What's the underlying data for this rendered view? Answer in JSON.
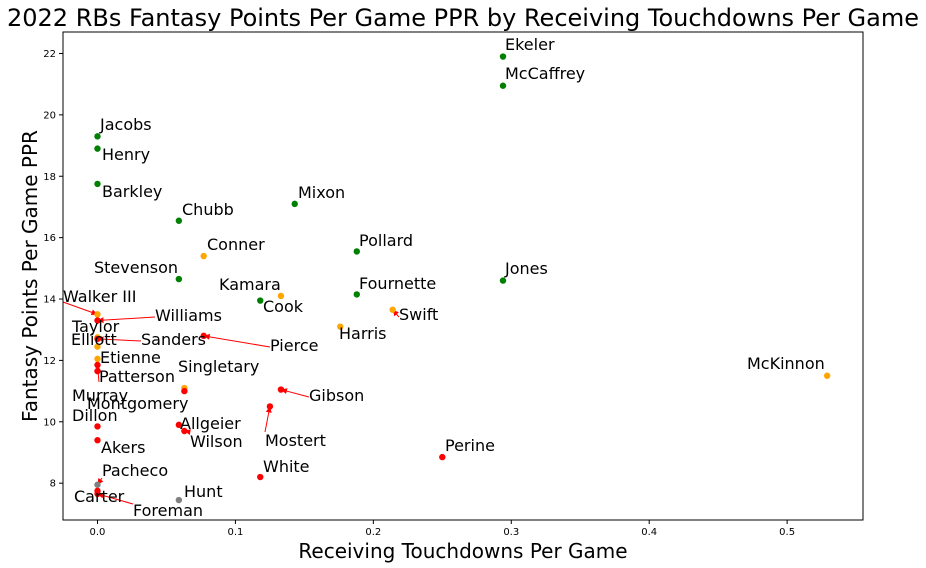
{
  "chart_data": {
    "type": "scatter",
    "title": "2022 RBs Fantasy Points Per Game PPR by Receiving Touchdowns Per Game",
    "xlabel": "Receiving Touchdowns Per Game",
    "ylabel": "Fantasy Points Per Game PPR",
    "xlim": [
      -0.025,
      0.555
    ],
    "ylim": [
      6.8,
      22.7
    ],
    "xticks": [
      "0.0",
      "0.1",
      "0.2",
      "0.3",
      "0.4",
      "0.5"
    ],
    "yticks": [
      "8",
      "10",
      "12",
      "14",
      "16",
      "18",
      "20",
      "22"
    ],
    "grid": false,
    "colors": {
      "green": "#008000",
      "orange": "#ffa500",
      "red": "#ff0000",
      "gray": "#808080"
    },
    "points": [
      {
        "label": "Ekeler",
        "x": 0.294,
        "y": 21.9,
        "color": "green"
      },
      {
        "label": "McCaffrey",
        "x": 0.294,
        "y": 20.95,
        "color": "green"
      },
      {
        "label": "Jacobs",
        "x": 0.0,
        "y": 19.3,
        "color": "green"
      },
      {
        "label": "Henry",
        "x": 0.0,
        "y": 18.9,
        "color": "green"
      },
      {
        "label": "Barkley",
        "x": 0.0,
        "y": 17.75,
        "color": "green"
      },
      {
        "label": "Chubb",
        "x": 0.059,
        "y": 16.55,
        "color": "green"
      },
      {
        "label": "Mixon",
        "x": 0.143,
        "y": 17.1,
        "color": "green"
      },
      {
        "label": "Conner",
        "x": 0.077,
        "y": 15.4,
        "color": "orange"
      },
      {
        "label": "Pollard",
        "x": 0.188,
        "y": 15.55,
        "color": "green"
      },
      {
        "label": "Stevenson",
        "x": 0.059,
        "y": 14.65,
        "color": "green"
      },
      {
        "label": "Jones",
        "x": 0.294,
        "y": 14.6,
        "color": "green"
      },
      {
        "label": "Kamara",
        "x": 0.133,
        "y": 14.1,
        "color": "orange"
      },
      {
        "label": "Cook",
        "x": 0.118,
        "y": 13.95,
        "color": "green"
      },
      {
        "label": "Fournette",
        "x": 0.188,
        "y": 14.15,
        "color": "green"
      },
      {
        "label": "Swift",
        "x": 0.214,
        "y": 13.65,
        "color": "orange"
      },
      {
        "label": "Harris",
        "x": 0.176,
        "y": 13.1,
        "color": "orange"
      },
      {
        "label": "Walker III",
        "x": 0.0,
        "y": 13.5,
        "color": "orange"
      },
      {
        "label": "Williams",
        "x": 0.0,
        "y": 13.3,
        "color": "red"
      },
      {
        "label": "Taylor",
        "x": 0.0,
        "y": 12.75,
        "color": "orange"
      },
      {
        "label": "Sanders",
        "x": 0.0,
        "y": 12.7,
        "color": "red"
      },
      {
        "label": "Elliott",
        "x": 0.0,
        "y": 12.45,
        "color": "orange"
      },
      {
        "label": "Pierce",
        "x": 0.077,
        "y": 12.8,
        "color": "red"
      },
      {
        "label": "Etienne",
        "x": 0.0,
        "y": 12.05,
        "color": "orange"
      },
      {
        "label": "Patterson",
        "x": 0.0,
        "y": 11.85,
        "color": "red"
      },
      {
        "label": "Murray",
        "x": 0.0,
        "y": 11.65,
        "color": "red"
      },
      {
        "label": "Singletary",
        "x": 0.063,
        "y": 11.1,
        "color": "orange"
      },
      {
        "label": "Montgomery",
        "x": 0.063,
        "y": 11.0,
        "color": "red"
      },
      {
        "label": "McKinnon",
        "x": 0.529,
        "y": 11.5,
        "color": "orange"
      },
      {
        "label": "Gibson",
        "x": 0.133,
        "y": 11.05,
        "color": "red"
      },
      {
        "label": "Mostert",
        "x": 0.125,
        "y": 10.5,
        "color": "red"
      },
      {
        "label": "Dillon",
        "x": 0.0,
        "y": 9.85,
        "color": "red"
      },
      {
        "label": "Allgeier",
        "x": 0.059,
        "y": 9.9,
        "color": "red"
      },
      {
        "label": "Wilson",
        "x": 0.063,
        "y": 9.7,
        "color": "red"
      },
      {
        "label": "Akers",
        "x": 0.0,
        "y": 9.4,
        "color": "red"
      },
      {
        "label": "Perine",
        "x": 0.25,
        "y": 8.85,
        "color": "red"
      },
      {
        "label": "White",
        "x": 0.118,
        "y": 8.2,
        "color": "red"
      },
      {
        "label": "Pacheco",
        "x": 0.0,
        "y": 7.95,
        "color": "gray"
      },
      {
        "label": "Hunt",
        "x": 0.059,
        "y": 7.45,
        "color": "gray"
      },
      {
        "label": "Carter",
        "x": 0.0,
        "y": 7.75,
        "color": "red"
      },
      {
        "label": "Foreman",
        "x": 0.0,
        "y": 7.65,
        "color": "red"
      }
    ]
  }
}
